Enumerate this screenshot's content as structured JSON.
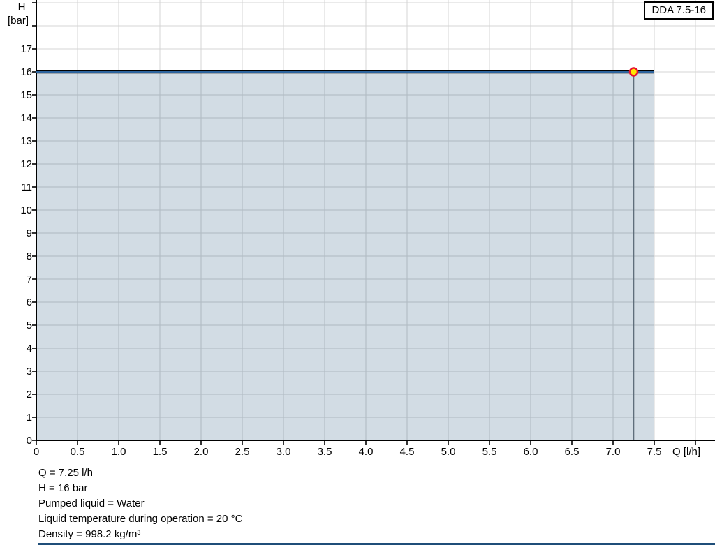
{
  "chart": {
    "legend_label": "DDA 7.5-16",
    "x_axis": {
      "title": "Q [l/h]",
      "tick_labels": [
        "0",
        "0.5",
        "1.0",
        "1.5",
        "2.0",
        "2.5",
        "3.0",
        "3.5",
        "4.0",
        "4.5",
        "5.0",
        "5.5",
        "6.0",
        "6.5",
        "7.0",
        "7.5"
      ],
      "tick_step": 0.5
    },
    "y_axis": {
      "title_line1": "H",
      "title_line2": "[bar]",
      "tick_labels": [
        "0",
        "1",
        "2",
        "3",
        "4",
        "5",
        "6",
        "7",
        "8",
        "9",
        "10",
        "11",
        "12",
        "13",
        "14",
        "15",
        "16",
        "17"
      ],
      "tick_step": 1
    },
    "colors": {
      "curve_edge": "#000000",
      "curve_core": "#2d649e",
      "fill": "rgba(31,78,121,0.2)",
      "grid": "#d4d4d4",
      "axis": "#000000",
      "crosshair": "#5f6e7b",
      "marker_fill": "#ffe600",
      "marker_stroke": "#e8112d",
      "text": "#000000"
    },
    "chart_data": {
      "type": "area",
      "series": [
        {
          "name": "DDA 7.5-16",
          "x": [
            0,
            7.5
          ],
          "y": [
            16,
            16
          ]
        }
      ],
      "operating_point": {
        "Q": 7.25,
        "H": 16
      },
      "title": "",
      "xlabel": "Q [l/h]",
      "ylabel": "H [bar]",
      "xlim": [
        0,
        8.24
      ],
      "ylim": [
        0,
        19.12
      ],
      "x_tick_step": 0.5,
      "y_tick_step": 1,
      "grid": true,
      "legend_position": "top-right"
    }
  },
  "info": {
    "lines": [
      "Q = 7.25 l/h",
      "H = 16 bar",
      "Pumped liquid = Water",
      "Liquid temperature during operation = 20 °C",
      "Density = 998.2 kg/m³"
    ]
  }
}
